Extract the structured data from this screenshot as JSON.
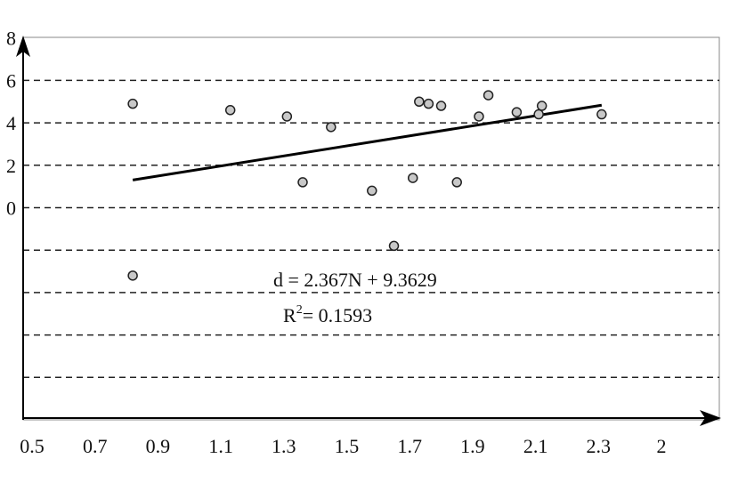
{
  "chart_data": {
    "type": "scatter",
    "title": "",
    "xlabel": "",
    "ylabel": "",
    "xlim": [
      0.5,
      2.5
    ],
    "ylim": [
      0,
      18
    ],
    "x_ticks": [
      "0.5",
      "0.7",
      "0.9",
      "1.1",
      "1.3",
      "1.5",
      "1.7",
      "1.9",
      "2.1",
      "2.3",
      "2"
    ],
    "y_ticks_partial": [
      "8",
      "6",
      "4",
      "2",
      "0"
    ],
    "grid": "horizontal dashed",
    "points": [
      {
        "x": 0.82,
        "y": 14.9
      },
      {
        "x": 0.82,
        "y": 6.8
      },
      {
        "x": 1.13,
        "y": 14.6
      },
      {
        "x": 1.31,
        "y": 14.3
      },
      {
        "x": 1.36,
        "y": 11.2
      },
      {
        "x": 1.45,
        "y": 13.8
      },
      {
        "x": 1.58,
        "y": 10.8
      },
      {
        "x": 1.65,
        "y": 8.2
      },
      {
        "x": 1.71,
        "y": 11.4
      },
      {
        "x": 1.73,
        "y": 15.0
      },
      {
        "x": 1.76,
        "y": 14.9
      },
      {
        "x": 1.8,
        "y": 14.8
      },
      {
        "x": 1.85,
        "y": 11.2
      },
      {
        "x": 1.92,
        "y": 14.3
      },
      {
        "x": 1.95,
        "y": 15.3
      },
      {
        "x": 2.04,
        "y": 14.5
      },
      {
        "x": 2.11,
        "y": 14.4
      },
      {
        "x": 2.12,
        "y": 14.8
      },
      {
        "x": 2.31,
        "y": 14.4
      }
    ],
    "trendline": {
      "slope": 2.367,
      "intercept": 9.3629,
      "x_range": [
        0.82,
        2.31
      ]
    },
    "annotations": {
      "equation": "d = 2.367N + 9.3629",
      "r2_prefix": "R",
      "r2_exp": "2",
      "r2_value": "= 0.1593"
    },
    "colors": {
      "point_fill": "#c8c8c8",
      "point_stroke": "#222222",
      "line": "#000000",
      "grid": "#222222"
    }
  }
}
